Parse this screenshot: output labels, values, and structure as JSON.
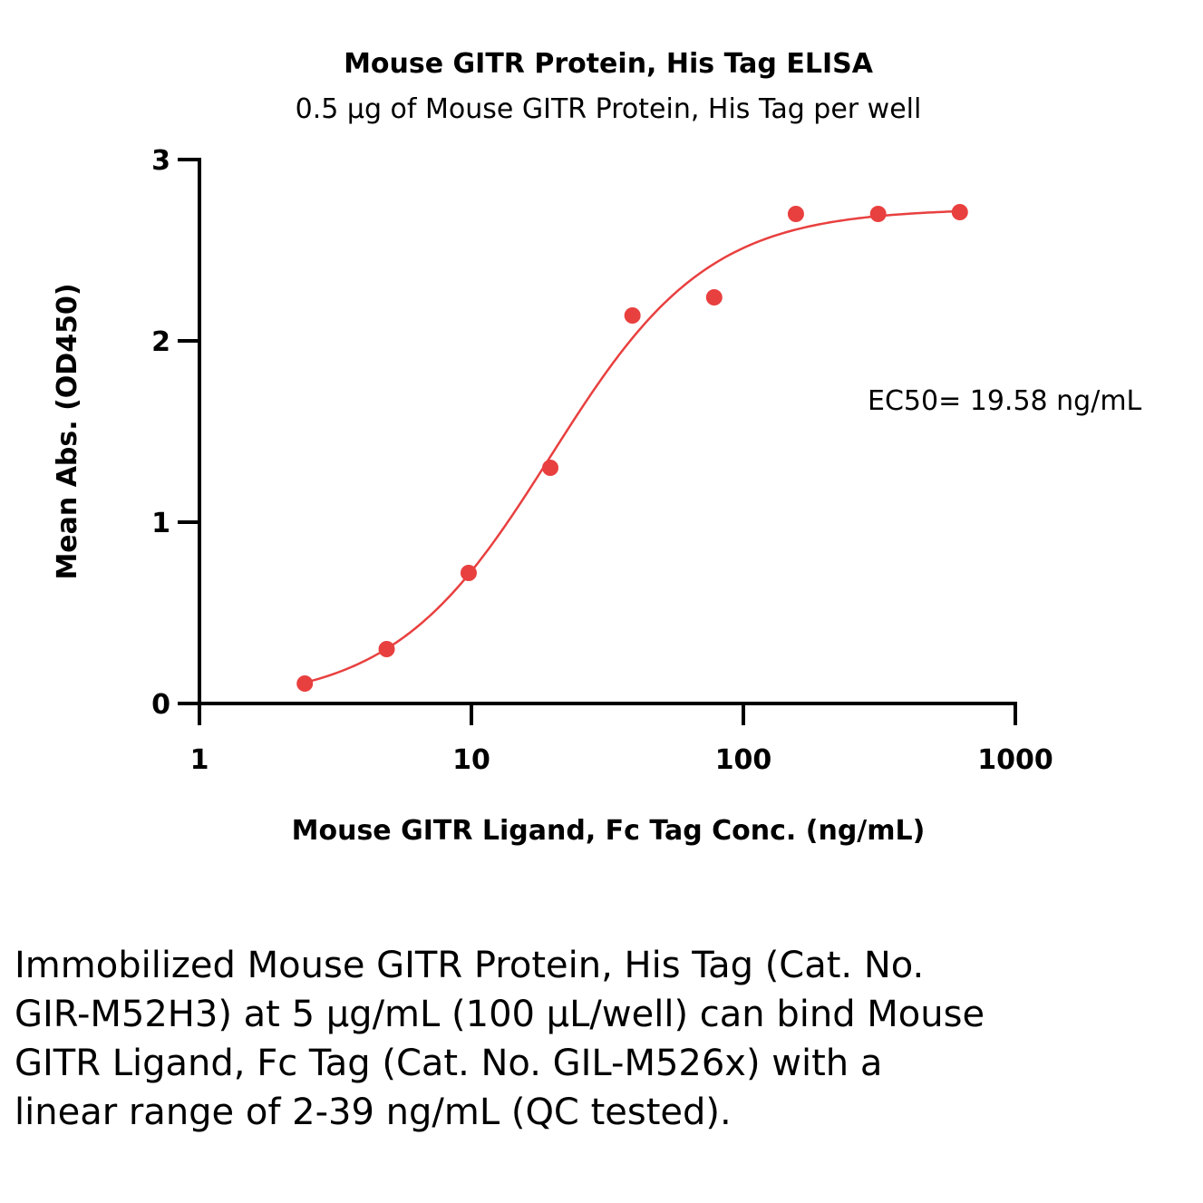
{
  "chart_data": {
    "type": "scatter",
    "title": "Mouse GITR Protein, His Tag ELISA",
    "subtitle": "0.5 µg of Mouse GITR Protein, His Tag per well",
    "xlabel": "Mouse GITR Ligand, Fc Tag Conc. (ng/mL)",
    "ylabel": "Mean Abs. (OD450)",
    "x_scale": "log",
    "xlim": [
      1,
      1000
    ],
    "ylim": [
      0,
      3
    ],
    "x_ticks": [
      1,
      10,
      100,
      1000
    ],
    "x_tick_labels": [
      "1",
      "10",
      "100",
      "1000"
    ],
    "y_ticks": [
      0,
      1,
      2,
      3
    ],
    "y_tick_labels": [
      "0",
      "1",
      "2",
      "3"
    ],
    "grid": false,
    "point_color": "#e8403f",
    "curve_color": "#e8403f",
    "series": [
      {
        "x": [
          2.44,
          4.88,
          9.77,
          19.5,
          39.1,
          78.1,
          156,
          313,
          625
        ],
        "y": [
          0.11,
          0.3,
          0.72,
          1.3,
          2.14,
          2.24,
          2.7,
          2.7,
          2.71
        ]
      }
    ],
    "fit": {
      "model": "4PL",
      "bottom": 0.0,
      "top": 2.73,
      "ec50": 19.58,
      "hill": 1.5,
      "x_range": [
        2.44,
        625
      ]
    },
    "annotation": "EC50= 19.58 ng/mL"
  },
  "caption": "Immobilized Mouse GITR Protein, His Tag (Cat. No. GIR-M52H3) at 5 µg/mL (100 µL/well) can bind Mouse GITR Ligand, Fc Tag (Cat. No. GIL-M526x) with a linear range of 2-39 ng/mL (QC tested)."
}
